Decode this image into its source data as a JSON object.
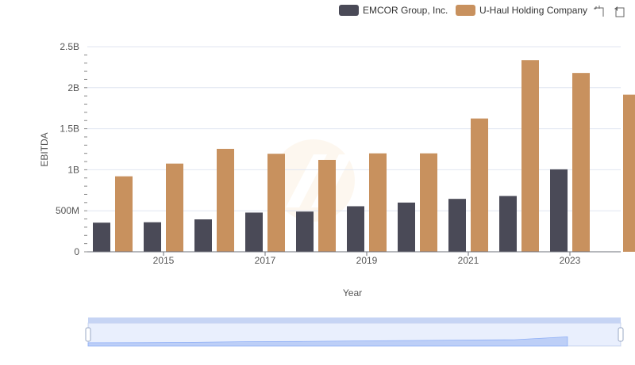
{
  "chart_data": {
    "type": "bar",
    "title": "",
    "xlabel": "Year",
    "ylabel": "EBITDA",
    "categories": [
      "2014",
      "2015",
      "2016",
      "2017",
      "2018",
      "2019",
      "2020",
      "2021",
      "2022",
      "2023",
      "2024"
    ],
    "x_tick_labels": [
      "2015",
      "2017",
      "2019",
      "2021",
      "2023"
    ],
    "y_tick_labels": [
      "0",
      "500M",
      "1B",
      "1.5B",
      "2B",
      "2.5B"
    ],
    "ylim": [
      0,
      2500000000
    ],
    "grid": true,
    "legend_position": "top-right",
    "series": [
      {
        "name": "EMCOR Group, Inc.",
        "color": "#4a4a57",
        "values": [
          355000000,
          360000000,
          395000000,
          478000000,
          490000000,
          555000000,
          600000000,
          645000000,
          680000000,
          1005000000,
          null
        ]
      },
      {
        "name": "U-Haul Holding Company",
        "color": "#c8915e",
        "values": [
          920000000,
          1075000000,
          1255000000,
          1195000000,
          1120000000,
          1200000000,
          1200000000,
          1625000000,
          2335000000,
          2180000000,
          1915000000
        ]
      }
    ]
  },
  "colors": {
    "accent_zoom": "#8fb0f7",
    "grid": "#e0e6f1"
  },
  "toolbox": {
    "icons": [
      "zoom-icon",
      "restore-icon"
    ]
  }
}
